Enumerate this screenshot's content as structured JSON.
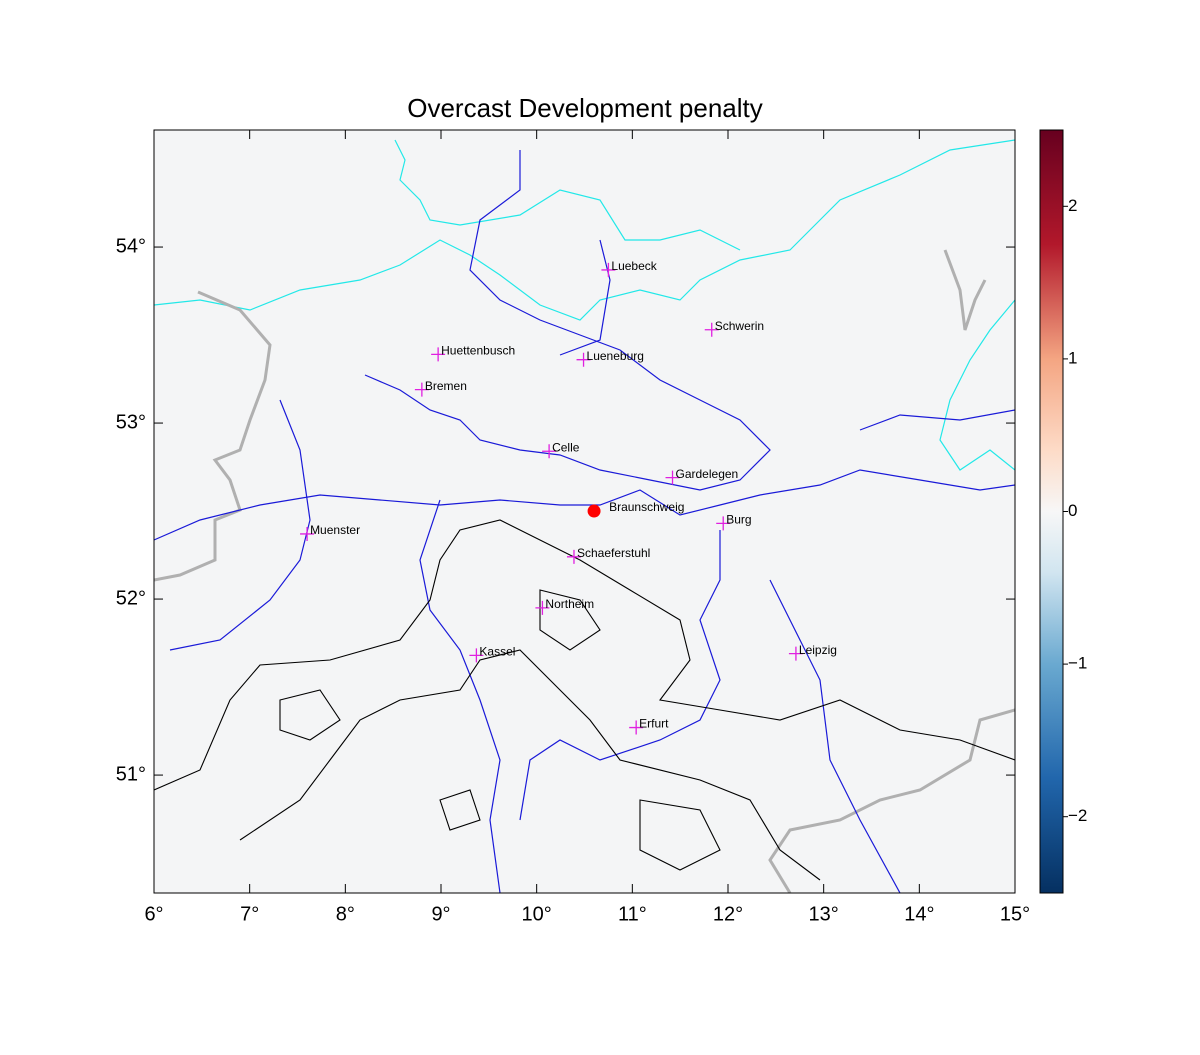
{
  "chart_data": {
    "type": "map",
    "title": "Overcast Development penalty",
    "xlim": [
      6,
      15
    ],
    "ylim": [
      50.33,
      54.665
    ],
    "xticks": [
      {
        "value": 6,
        "label": "6°"
      },
      {
        "value": 7,
        "label": "7°"
      },
      {
        "value": 8,
        "label": "8°"
      },
      {
        "value": 9,
        "label": "9°"
      },
      {
        "value": 10,
        "label": "10°"
      },
      {
        "value": 11,
        "label": "11°"
      },
      {
        "value": 12,
        "label": "12°"
      },
      {
        "value": 13,
        "label": "13°"
      },
      {
        "value": 14,
        "label": "14°"
      },
      {
        "value": 15,
        "label": "15°"
      }
    ],
    "yticks": [
      {
        "value": 51,
        "label": "51°"
      },
      {
        "value": 52,
        "label": "52°"
      },
      {
        "value": 53,
        "label": "53°"
      },
      {
        "value": 54,
        "label": "54°"
      }
    ],
    "colorbar": {
      "lim": [
        -2.5,
        2.5
      ],
      "ticks": [
        {
          "value": -2,
          "label": "−2"
        },
        {
          "value": -1,
          "label": "−1"
        },
        0,
        1,
        2
      ]
    },
    "cities": {
      "color": "#e020e0",
      "names": [
        "Luebeck",
        "Schwerin",
        "Huettenbusch",
        "Lueneburg",
        "Bremen",
        "Celle",
        "Gardelegen",
        "Burg",
        "Muenster",
        "Schaeferstuhl",
        "Northeim",
        "Kassel",
        "Leipzig",
        "Erfurt"
      ],
      "lon": [
        10.75,
        11.83,
        8.97,
        10.49,
        8.8,
        10.13,
        11.42,
        11.95,
        7.6,
        10.39,
        10.06,
        9.37,
        12.71,
        11.04
      ],
      "lat": [
        53.87,
        53.53,
        53.39,
        53.36,
        53.19,
        52.84,
        52.69,
        52.43,
        52.37,
        52.24,
        51.95,
        51.68,
        51.69,
        51.27
      ]
    },
    "site": {
      "name": "Braunschweig",
      "lon": 10.6,
      "lat": 52.5,
      "color": "#ff0000"
    }
  }
}
